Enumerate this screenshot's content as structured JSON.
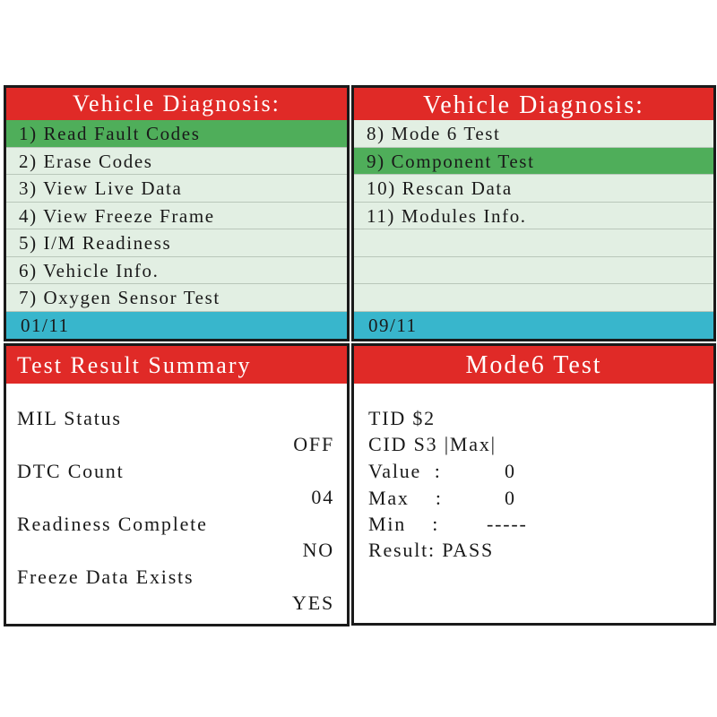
{
  "panels": [
    {
      "title": "Vehicle Diagnosis:",
      "items": [
        "1) Read Fault Codes",
        "2) Erase Codes",
        "3) View Live Data",
        "4) View Freeze Frame",
        "5) I/M Readiness",
        "6) Vehicle Info.",
        "7) Oxygen Sensor Test"
      ],
      "footer": "01/11"
    },
    {
      "title": "Vehicle Diagnosis:",
      "items": [
        "8) Mode 6 Test",
        "9) Component Test",
        "10) Rescan Data",
        "11) Modules Info."
      ],
      "footer": "09/11"
    },
    {
      "title": "Test Result Summary",
      "fields": [
        {
          "label": "MIL Status",
          "value": "OFF"
        },
        {
          "label": "DTC Count",
          "value": "04"
        },
        {
          "label": "Readiness Complete",
          "value": "NO"
        },
        {
          "label": "Freeze Data Exists",
          "value": "YES"
        }
      ]
    },
    {
      "title": "Mode6 Test",
      "lines": [
        "TID $2",
        "CID S3 |Max|"
      ],
      "fields": [
        {
          "label": "Value  :",
          "value": "0"
        },
        {
          "label": "Max    :",
          "value": "0"
        },
        {
          "label": "Min    :",
          "value": "-----"
        }
      ],
      "result": "Result: PASS"
    }
  ]
}
